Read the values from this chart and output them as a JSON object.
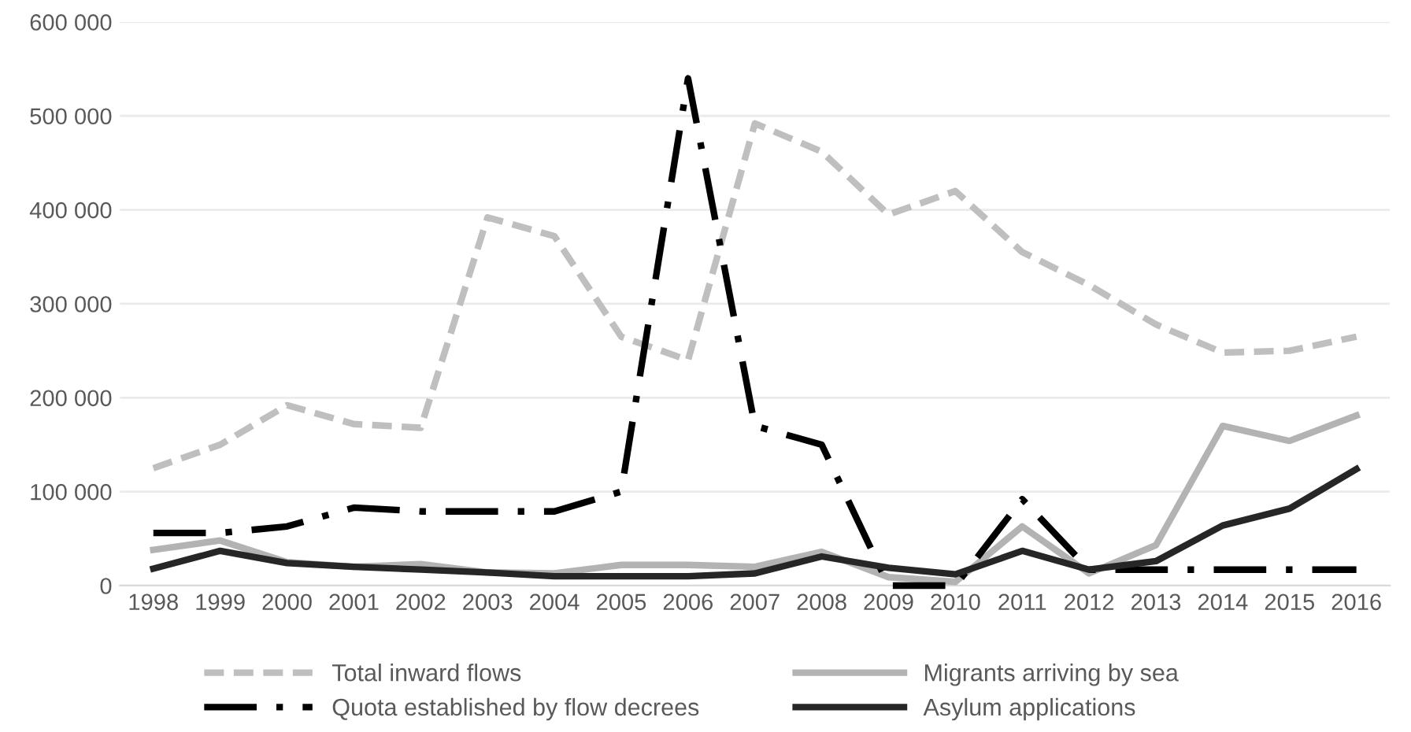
{
  "chart_data": {
    "type": "line",
    "categories": [
      "1998",
      "1999",
      "2000",
      "2001",
      "2002",
      "2003",
      "2004",
      "2005",
      "2006",
      "2007",
      "2008",
      "2009",
      "2010",
      "2011",
      "2012",
      "2013",
      "2014",
      "2015",
      "2016"
    ],
    "ylim": [
      0,
      600000
    ],
    "yticks": [
      {
        "value": 0,
        "label": "0"
      },
      {
        "value": 100000,
        "label": "100 000"
      },
      {
        "value": 200000,
        "label": "200 000"
      },
      {
        "value": 300000,
        "label": "300 000"
      },
      {
        "value": 400000,
        "label": "400 000"
      },
      {
        "value": 500000,
        "label": "500 000"
      },
      {
        "value": 600000,
        "label": "600 000"
      }
    ],
    "grid": "y",
    "legend": "bottom",
    "marker": "none",
    "series": [
      {
        "name": "Total inward flows",
        "color": "#bfbfbf",
        "line_style": "dashed",
        "values": [
          125000,
          150000,
          192000,
          172000,
          168000,
          392000,
          372000,
          265000,
          240000,
          492000,
          462000,
          395000,
          420000,
          355000,
          320000,
          278000,
          248000,
          250000,
          265000
        ]
      },
      {
        "name": "Migrants arriving by sea",
        "color": "#b3b3b3",
        "line_style": "solid",
        "values": [
          38000,
          48000,
          25000,
          20000,
          23000,
          14000,
          13000,
          22000,
          22000,
          20000,
          36000,
          9000,
          4000,
          63000,
          13000,
          43000,
          170000,
          154000,
          181000
        ]
      },
      {
        "name": "Quota established by flow decrees",
        "color": "#000000",
        "line_style": "dashdot",
        "values": [
          56000,
          56000,
          63000,
          83000,
          79000,
          79000,
          79000,
          100000,
          540000,
          170000,
          150000,
          0,
          0,
          92000,
          17000,
          17000,
          17000,
          17000,
          17000
        ]
      },
      {
        "name": "Asylum applications",
        "color": "#262626",
        "line_style": "solid",
        "values": [
          18000,
          37000,
          24000,
          20000,
          17000,
          14000,
          10000,
          10000,
          10000,
          13000,
          31000,
          19000,
          12000,
          37000,
          17000,
          26000,
          64000,
          82000,
          124000
        ]
      }
    ]
  }
}
